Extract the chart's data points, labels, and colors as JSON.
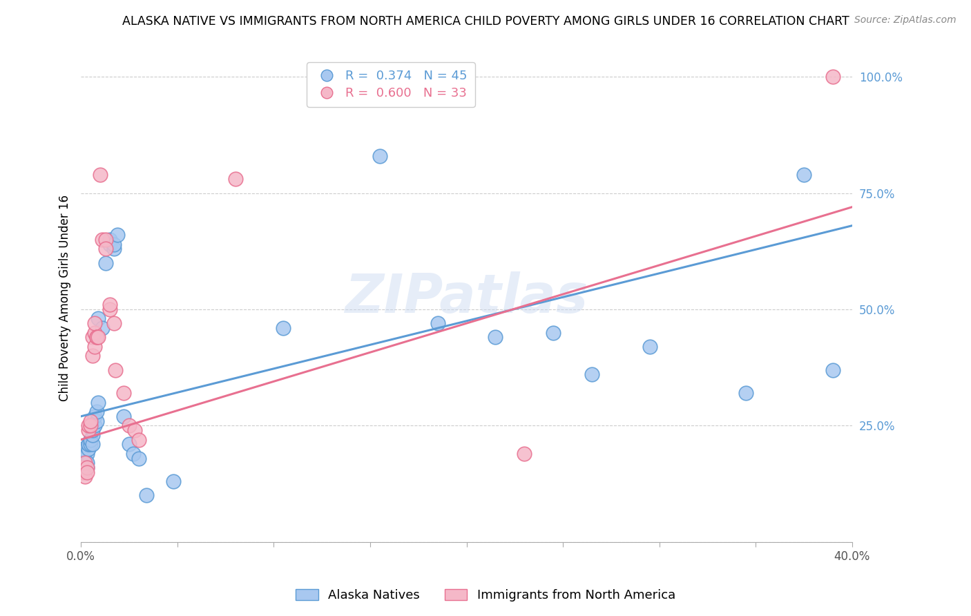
{
  "title": "ALASKA NATIVE VS IMMIGRANTS FROM NORTH AMERICA CHILD POVERTY AMONG GIRLS UNDER 16 CORRELATION CHART",
  "source": "Source: ZipAtlas.com",
  "ylabel": "Child Poverty Among Girls Under 16",
  "yticks": [
    0.0,
    0.25,
    0.5,
    0.75,
    1.0
  ],
  "ytick_labels": [
    "",
    "25.0%",
    "50.0%",
    "75.0%",
    "100.0%"
  ],
  "blue_color": "#A8C8F0",
  "pink_color": "#F5B8C8",
  "blue_line_color": "#5B9BD5",
  "pink_line_color": "#E87090",
  "blue_R": 0.374,
  "blue_N": 45,
  "pink_R": 0.6,
  "pink_N": 33,
  "watermark": "ZIPatlas",
  "blue_label": "Alaska Natives",
  "pink_label": "Immigrants from North America",
  "blue_points": [
    [
      0.001,
      0.17
    ],
    [
      0.001,
      0.2
    ],
    [
      0.002,
      0.18
    ],
    [
      0.002,
      0.16
    ],
    [
      0.003,
      0.19
    ],
    [
      0.003,
      0.17
    ],
    [
      0.003,
      0.16
    ],
    [
      0.004,
      0.2
    ],
    [
      0.004,
      0.21
    ],
    [
      0.004,
      0.21
    ],
    [
      0.005,
      0.22
    ],
    [
      0.005,
      0.21
    ],
    [
      0.005,
      0.22
    ],
    [
      0.006,
      0.21
    ],
    [
      0.006,
      0.23
    ],
    [
      0.006,
      0.24
    ],
    [
      0.007,
      0.25
    ],
    [
      0.007,
      0.27
    ],
    [
      0.008,
      0.26
    ],
    [
      0.008,
      0.28
    ],
    [
      0.009,
      0.3
    ],
    [
      0.009,
      0.48
    ],
    [
      0.011,
      0.46
    ],
    [
      0.013,
      0.6
    ],
    [
      0.015,
      0.64
    ],
    [
      0.015,
      0.65
    ],
    [
      0.017,
      0.63
    ],
    [
      0.017,
      0.64
    ],
    [
      0.019,
      0.66
    ],
    [
      0.022,
      0.27
    ],
    [
      0.025,
      0.21
    ],
    [
      0.027,
      0.19
    ],
    [
      0.03,
      0.18
    ],
    [
      0.034,
      0.1
    ],
    [
      0.048,
      0.13
    ],
    [
      0.105,
      0.46
    ],
    [
      0.155,
      0.83
    ],
    [
      0.185,
      0.47
    ],
    [
      0.215,
      0.44
    ],
    [
      0.245,
      0.45
    ],
    [
      0.265,
      0.36
    ],
    [
      0.295,
      0.42
    ],
    [
      0.345,
      0.32
    ],
    [
      0.375,
      0.79
    ],
    [
      0.39,
      0.37
    ]
  ],
  "pink_points": [
    [
      0.001,
      0.16
    ],
    [
      0.001,
      0.15
    ],
    [
      0.002,
      0.14
    ],
    [
      0.002,
      0.17
    ],
    [
      0.003,
      0.16
    ],
    [
      0.003,
      0.15
    ],
    [
      0.004,
      0.24
    ],
    [
      0.004,
      0.25
    ],
    [
      0.005,
      0.25
    ],
    [
      0.005,
      0.26
    ],
    [
      0.006,
      0.4
    ],
    [
      0.006,
      0.44
    ],
    [
      0.007,
      0.42
    ],
    [
      0.007,
      0.45
    ],
    [
      0.007,
      0.47
    ],
    [
      0.008,
      0.44
    ],
    [
      0.008,
      0.44
    ],
    [
      0.009,
      0.44
    ],
    [
      0.01,
      0.79
    ],
    [
      0.011,
      0.65
    ],
    [
      0.013,
      0.65
    ],
    [
      0.013,
      0.63
    ],
    [
      0.015,
      0.5
    ],
    [
      0.015,
      0.51
    ],
    [
      0.017,
      0.47
    ],
    [
      0.018,
      0.37
    ],
    [
      0.022,
      0.32
    ],
    [
      0.025,
      0.25
    ],
    [
      0.028,
      0.24
    ],
    [
      0.03,
      0.22
    ],
    [
      0.08,
      0.78
    ],
    [
      0.23,
      0.19
    ],
    [
      0.39,
      1.0
    ]
  ],
  "blue_line_x": [
    0.0,
    0.4
  ],
  "blue_line_y": [
    0.27,
    0.68
  ],
  "pink_line_x": [
    0.0,
    0.4
  ],
  "pink_line_y": [
    0.22,
    0.72
  ],
  "xlim": [
    0.0,
    0.4
  ],
  "ylim": [
    0.0,
    1.05
  ],
  "figsize": [
    14.06,
    8.92
  ],
  "dpi": 100
}
